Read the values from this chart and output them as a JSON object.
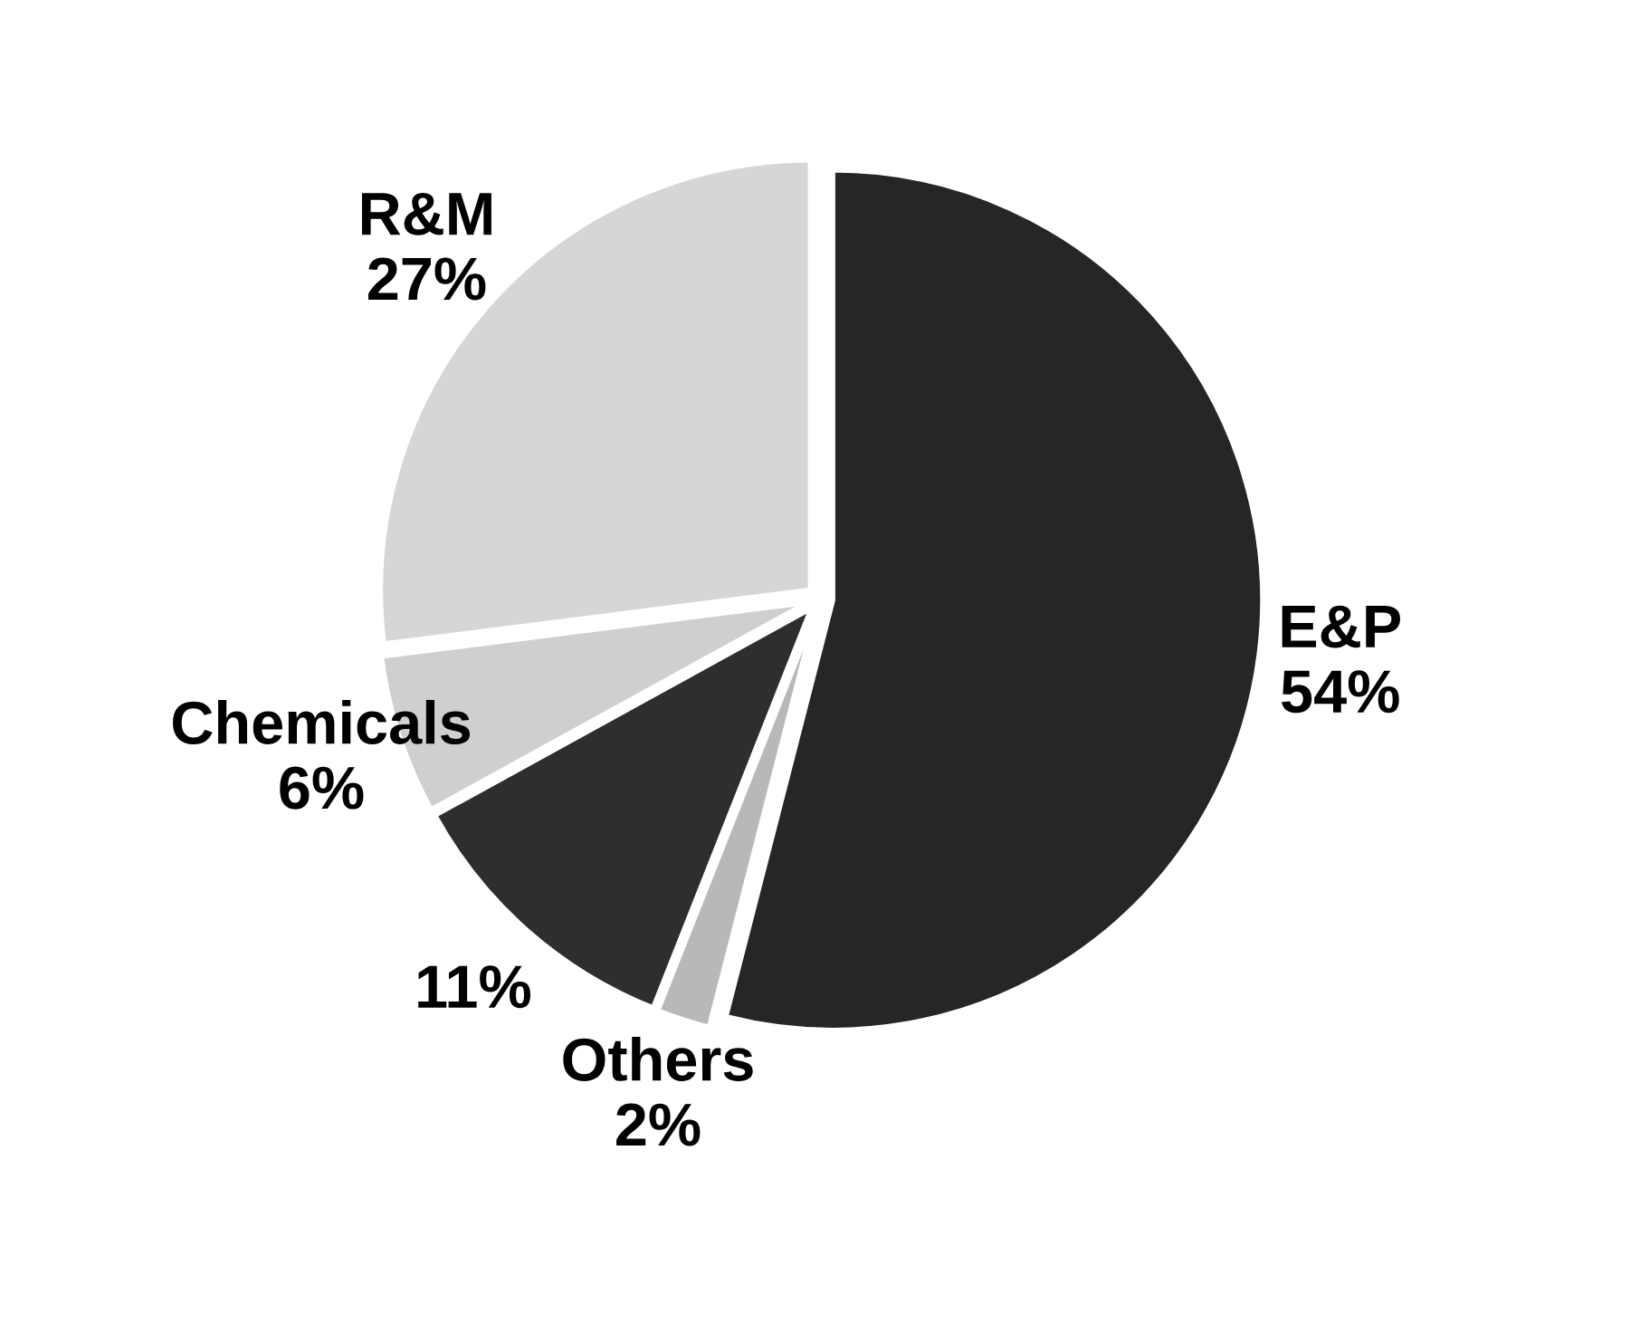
{
  "chart_data": {
    "type": "pie",
    "categories": [
      "E&P",
      "Others",
      null,
      "Chemicals",
      "R&M"
    ],
    "values": [
      54,
      2,
      11,
      6,
      27
    ],
    "colors": [
      "#262626",
      "#b8b8b8",
      "#2e2e2e",
      "#cfcfcf",
      "#d6d6d6"
    ],
    "value_labels": [
      "54%",
      "2%",
      "11%",
      "6%",
      "27%"
    ],
    "legend": false
  }
}
